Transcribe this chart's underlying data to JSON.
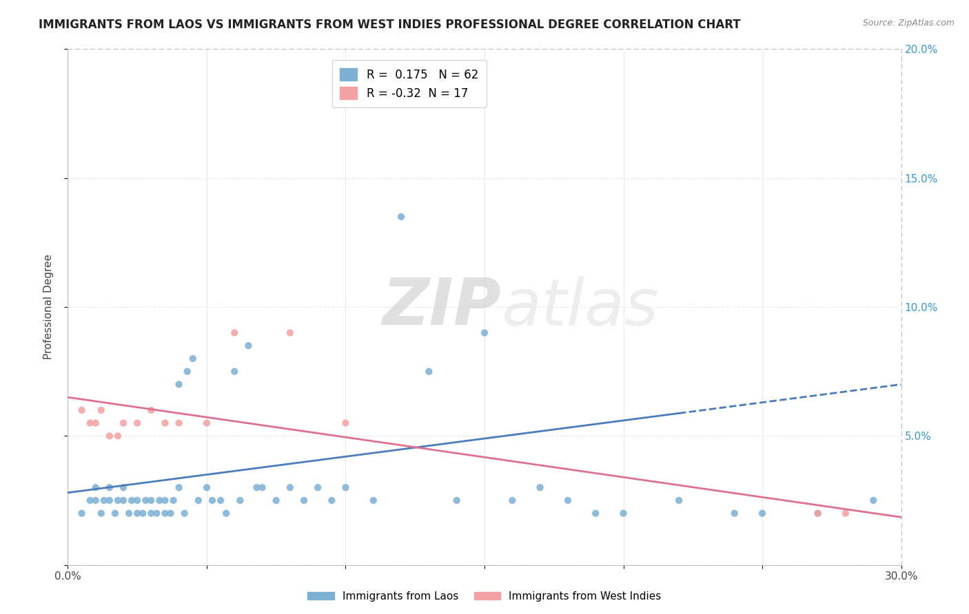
{
  "title": "IMMIGRANTS FROM LAOS VS IMMIGRANTS FROM WEST INDIES PROFESSIONAL DEGREE CORRELATION CHART",
  "source": "Source: ZipAtlas.com",
  "ylabel": "Professional Degree",
  "x_min": 0.0,
  "x_max": 0.3,
  "y_min": 0.0,
  "y_max": 0.2,
  "x_ticks": [
    0.0,
    0.05,
    0.1,
    0.15,
    0.2,
    0.25,
    0.3
  ],
  "y_ticks": [
    0.0,
    0.05,
    0.1,
    0.15,
    0.2
  ],
  "laos_R": 0.175,
  "laos_N": 62,
  "west_indies_R": -0.32,
  "west_indies_N": 17,
  "laos_color": "#7BAFD4",
  "west_indies_color": "#F4A0A0",
  "laos_line_color": "#4A7BBB",
  "west_indies_line_color": "#E07090",
  "laos_scatter_x": [
    0.005,
    0.008,
    0.01,
    0.01,
    0.012,
    0.013,
    0.015,
    0.015,
    0.017,
    0.018,
    0.02,
    0.02,
    0.022,
    0.023,
    0.025,
    0.025,
    0.027,
    0.028,
    0.03,
    0.03,
    0.032,
    0.033,
    0.035,
    0.035,
    0.037,
    0.038,
    0.04,
    0.04,
    0.042,
    0.043,
    0.045,
    0.047,
    0.05,
    0.052,
    0.055,
    0.057,
    0.06,
    0.062,
    0.065,
    0.068,
    0.07,
    0.075,
    0.08,
    0.085,
    0.09,
    0.095,
    0.1,
    0.11,
    0.12,
    0.13,
    0.14,
    0.15,
    0.16,
    0.17,
    0.18,
    0.19,
    0.2,
    0.22,
    0.24,
    0.25,
    0.27,
    0.29
  ],
  "laos_scatter_y": [
    0.02,
    0.025,
    0.025,
    0.03,
    0.02,
    0.025,
    0.025,
    0.03,
    0.02,
    0.025,
    0.025,
    0.03,
    0.02,
    0.025,
    0.02,
    0.025,
    0.02,
    0.025,
    0.02,
    0.025,
    0.02,
    0.025,
    0.02,
    0.025,
    0.02,
    0.025,
    0.03,
    0.07,
    0.02,
    0.075,
    0.08,
    0.025,
    0.03,
    0.025,
    0.025,
    0.02,
    0.075,
    0.025,
    0.085,
    0.03,
    0.03,
    0.025,
    0.03,
    0.025,
    0.03,
    0.025,
    0.03,
    0.025,
    0.135,
    0.075,
    0.025,
    0.09,
    0.025,
    0.03,
    0.025,
    0.02,
    0.02,
    0.025,
    0.02,
    0.02,
    0.02,
    0.025
  ],
  "west_indies_scatter_x": [
    0.005,
    0.008,
    0.01,
    0.012,
    0.015,
    0.018,
    0.02,
    0.025,
    0.03,
    0.035,
    0.04,
    0.05,
    0.06,
    0.08,
    0.1,
    0.27,
    0.28
  ],
  "west_indies_scatter_y": [
    0.06,
    0.055,
    0.055,
    0.06,
    0.05,
    0.05,
    0.055,
    0.055,
    0.06,
    0.055,
    0.055,
    0.055,
    0.09,
    0.09,
    0.055,
    0.02,
    0.02
  ],
  "watermark_zip": "ZIP",
  "watermark_atlas": "atlas",
  "background_color": "#FFFFFF",
  "grid_color": "#E8E8E8"
}
